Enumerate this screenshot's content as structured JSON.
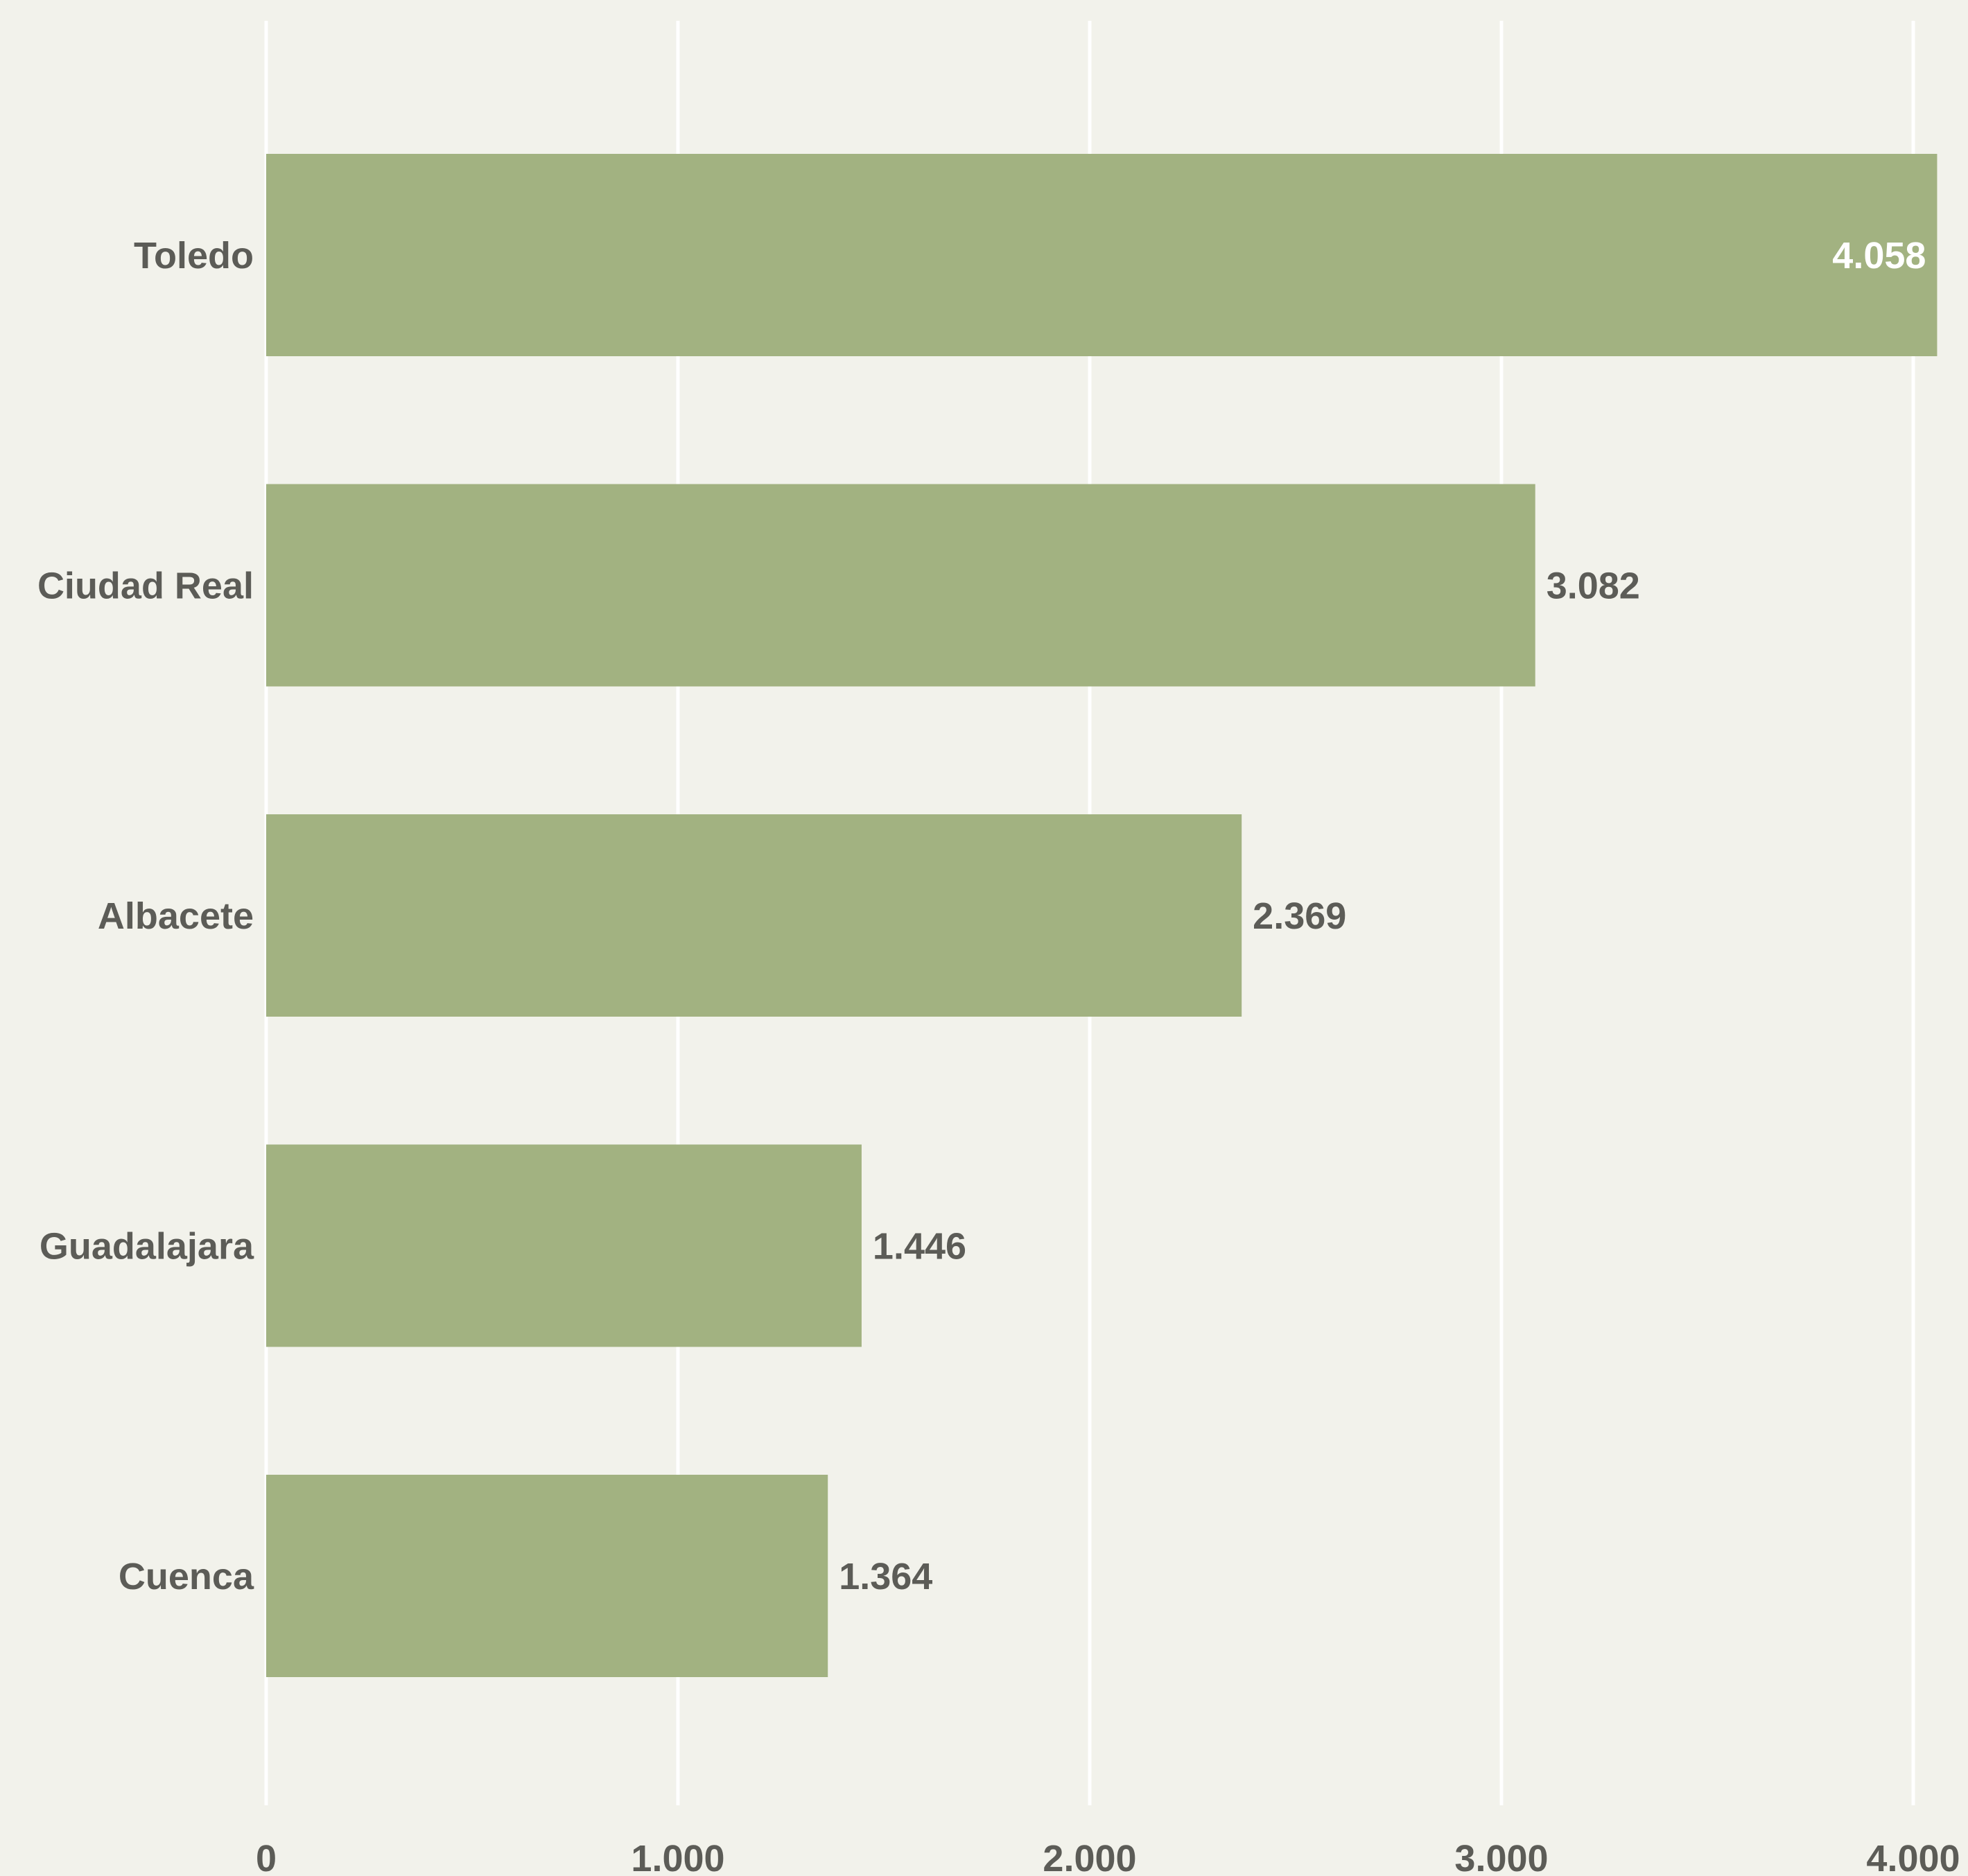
{
  "chart_data": {
    "type": "bar",
    "orientation": "horizontal",
    "categories": [
      "Toledo",
      "Ciudad Real",
      "Albacete",
      "Guadalajara",
      "Cuenca"
    ],
    "values": [
      4058,
      3082,
      2369,
      1446,
      1364
    ],
    "value_labels": [
      "4.058",
      "3.082",
      "2.369",
      "1.446",
      "1.364"
    ],
    "title": "",
    "xlabel": "",
    "ylabel": "",
    "xlim": [
      0,
      4000
    ],
    "x_ticks": [
      0,
      1000,
      2000,
      3000,
      4000
    ],
    "x_tick_labels": [
      "0",
      "1.000",
      "2.000",
      "3.000",
      "4.000"
    ],
    "grid": true,
    "legend": "none",
    "colors": {
      "background": "#f2f2eb",
      "bar": "#a2b281",
      "gridline": "#ffffff",
      "text": "#5c5c57",
      "inside_label": "#ffffff"
    }
  }
}
